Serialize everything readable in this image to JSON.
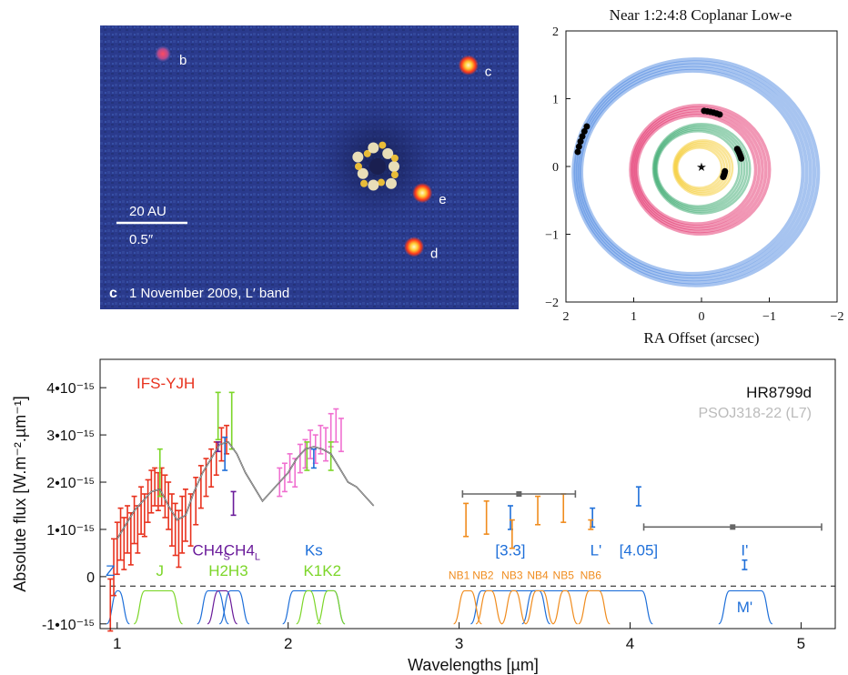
{
  "image_panel": {
    "background": "#2a3a8c",
    "panel_letter": "c",
    "caption": "1 November 2009, L′ band",
    "scale_top": "20 AU",
    "scale_bottom": "0.5″",
    "planets": [
      {
        "label": "b",
        "fx": 0.15,
        "fy": 0.1,
        "bright": false
      },
      {
        "label": "c",
        "fx": 0.88,
        "fy": 0.14,
        "bright": true
      },
      {
        "label": "e",
        "fx": 0.77,
        "fy": 0.59,
        "bright": true
      },
      {
        "label": "d",
        "fx": 0.75,
        "fy": 0.78,
        "bright": true
      }
    ]
  },
  "orbit_chart": {
    "title": "Near 1:2:4:8 Coplanar Low-e",
    "xlabel": "RA Offset (arcsec)",
    "ylabel": "",
    "xlim": [
      2,
      -2
    ],
    "ylim": [
      -2,
      2
    ],
    "xticks": [
      2,
      1,
      0,
      -1,
      -2
    ],
    "yticks": [
      -2,
      -1,
      0,
      1,
      2
    ],
    "tick_labels": [
      "2",
      "1",
      "0",
      "−1",
      "−2"
    ],
    "orbits": [
      {
        "name": "b",
        "a": 1.72,
        "color": "#3b7ddd"
      },
      {
        "name": "c",
        "a": 0.95,
        "color": "#e0195a"
      },
      {
        "name": "d",
        "a": 0.66,
        "color": "#1f9e5a"
      },
      {
        "name": "e",
        "a": 0.38,
        "color": "#f5c518"
      }
    ]
  },
  "chart_data": {
    "type": "scatter",
    "title": "",
    "xlabel": "Wavelengths [µm]",
    "ylabel": "Absolute flux [W.m⁻².µm⁻¹]",
    "xlim": [
      0.9,
      5.2
    ],
    "ylim": [
      -1.1,
      4.6
    ],
    "xticks": [
      1,
      2,
      3,
      4,
      5
    ],
    "xtick_labels": [
      "1",
      "2",
      "3",
      "4",
      "5"
    ],
    "yticks": [
      -1,
      0,
      1,
      2,
      3,
      4
    ],
    "ytick_labels": [
      "-1•10⁻¹⁵",
      "0",
      "1•10⁻¹⁵",
      "2•10⁻¹⁵",
      "3•10⁻¹⁵",
      "4•10⁻¹⁵"
    ],
    "legend": [
      {
        "text": "IFS-YJH",
        "color": "#e8321e",
        "position": "top-left"
      },
      {
        "text": "HR8799d",
        "color": "#111111",
        "position": "top-right"
      },
      {
        "text": "PSOJ318-22 (L7)",
        "color": "#bbbbbb",
        "position": "top-right"
      }
    ],
    "band_labels": [
      {
        "text": "Z",
        "x": 0.96,
        "y": 0.02,
        "color": "#1e6fd9"
      },
      {
        "text": "J",
        "x": 1.25,
        "y": 0.02,
        "color": "#7cd629"
      },
      {
        "text": "H2H3",
        "x": 1.65,
        "y": 0.02,
        "color": "#7cd629"
      },
      {
        "text": "CH4",
        "sub": "S",
        "x": 1.55,
        "y": 0.45,
        "color": "#6a1b9a"
      },
      {
        "text": "CH4",
        "sub": "L",
        "x": 1.73,
        "y": 0.45,
        "color": "#6a1b9a"
      },
      {
        "text": "Ks",
        "x": 2.15,
        "y": 0.45,
        "color": "#1e6fd9"
      },
      {
        "text": "K1K2",
        "x": 2.2,
        "y": 0.02,
        "color": "#7cd629"
      },
      {
        "text": "[3.3]",
        "x": 3.3,
        "y": 0.45,
        "color": "#1e6fd9"
      },
      {
        "text": "L'",
        "x": 3.8,
        "y": 0.45,
        "color": "#1e6fd9"
      },
      {
        "text": "[4.05]",
        "x": 4.05,
        "y": 0.45,
        "color": "#1e6fd9"
      },
      {
        "text": "I'",
        "x": 4.67,
        "y": 0.45,
        "color": "#1e6fd9"
      },
      {
        "text": "M'",
        "x": 4.67,
        "y": -0.75,
        "color": "#1e6fd9"
      },
      {
        "text": "NB1",
        "x": 3.0,
        "y": -0.05,
        "color": "#f08c1e"
      },
      {
        "text": "NB2",
        "x": 3.14,
        "y": -0.05,
        "color": "#f08c1e"
      },
      {
        "text": "NB3",
        "x": 3.31,
        "y": -0.05,
        "color": "#f08c1e"
      },
      {
        "text": "NB4",
        "x": 3.46,
        "y": -0.05,
        "color": "#f08c1e"
      },
      {
        "text": "NB5",
        "x": 3.61,
        "y": -0.05,
        "color": "#f08c1e"
      },
      {
        "text": "NB6",
        "x": 3.77,
        "y": -0.05,
        "color": "#f08c1e"
      }
    ],
    "series": [
      {
        "name": "IFS-YJH",
        "color": "#e8321e",
        "kind": "errorbar",
        "points": [
          [
            0.96,
            -0.6,
            0.55
          ],
          [
            0.98,
            0.2,
            0.6
          ],
          [
            1.0,
            0.6,
            0.55
          ],
          [
            1.02,
            0.9,
            0.55
          ],
          [
            1.04,
            0.7,
            0.55
          ],
          [
            1.06,
            1.0,
            0.5
          ],
          [
            1.08,
            0.8,
            0.55
          ],
          [
            1.1,
            1.2,
            0.5
          ],
          [
            1.12,
            1.0,
            0.5
          ],
          [
            1.14,
            1.4,
            0.5
          ],
          [
            1.16,
            1.3,
            0.45
          ],
          [
            1.18,
            1.6,
            0.45
          ],
          [
            1.2,
            1.8,
            0.45
          ],
          [
            1.22,
            1.9,
            0.4
          ],
          [
            1.24,
            1.8,
            0.4
          ],
          [
            1.26,
            1.9,
            0.4
          ],
          [
            1.28,
            1.7,
            0.45
          ],
          [
            1.3,
            1.5,
            0.5
          ],
          [
            1.32,
            1.2,
            0.55
          ],
          [
            1.34,
            1.0,
            0.55
          ],
          [
            1.36,
            0.8,
            0.6
          ],
          [
            1.38,
            1.1,
            0.6
          ],
          [
            1.4,
            1.3,
            0.55
          ],
          [
            1.43,
            1.2,
            0.55
          ],
          [
            1.46,
            1.6,
            0.5
          ],
          [
            1.49,
            1.9,
            0.45
          ],
          [
            1.52,
            2.1,
            0.4
          ],
          [
            1.55,
            2.3,
            0.4
          ],
          [
            1.58,
            2.5,
            0.35
          ],
          [
            1.61,
            2.8,
            0.35
          ],
          [
            1.64,
            2.9,
            0.3
          ]
        ]
      },
      {
        "name": "IFS-H/K",
        "color": "#f06fd0",
        "kind": "errorbar",
        "points": [
          [
            1.95,
            2.0,
            0.3
          ],
          [
            1.98,
            2.1,
            0.3
          ],
          [
            2.01,
            2.3,
            0.3
          ],
          [
            2.04,
            2.2,
            0.3
          ],
          [
            2.07,
            2.5,
            0.3
          ],
          [
            2.1,
            2.6,
            0.3
          ],
          [
            2.13,
            2.8,
            0.3
          ],
          [
            2.16,
            2.7,
            0.3
          ],
          [
            2.19,
            2.9,
            0.3
          ],
          [
            2.22,
            2.8,
            0.35
          ],
          [
            2.25,
            3.1,
            0.35
          ],
          [
            2.28,
            3.2,
            0.35
          ],
          [
            2.31,
            3.0,
            0.35
          ]
        ]
      },
      {
        "name": "photometry-green",
        "color": "#7cd629",
        "kind": "errorbar",
        "points": [
          [
            1.25,
            2.2,
            0.5
          ],
          [
            1.59,
            3.4,
            0.5
          ],
          [
            1.67,
            3.3,
            0.6
          ],
          [
            2.11,
            2.55,
            0.3
          ],
          [
            2.25,
            2.55,
            0.3
          ]
        ]
      },
      {
        "name": "photometry-purple",
        "color": "#6a1b9a",
        "kind": "errorbar",
        "points": [
          [
            1.59,
            2.75,
            0.1
          ],
          [
            1.68,
            1.55,
            0.25
          ]
        ]
      },
      {
        "name": "photometry-blue",
        "color": "#1e6fd9",
        "kind": "errorbar",
        "points": [
          [
            1.63,
            2.6,
            0.35
          ],
          [
            2.15,
            2.5,
            0.2
          ],
          [
            3.3,
            1.25,
            0.25
          ],
          [
            3.78,
            1.25,
            0.2
          ],
          [
            4.05,
            1.7,
            0.2
          ],
          [
            4.67,
            0.25,
            0.1
          ]
        ]
      },
      {
        "name": "photometry-orange",
        "color": "#f08c1e",
        "kind": "errorbar",
        "points": [
          [
            3.04,
            1.2,
            0.35
          ],
          [
            3.16,
            1.25,
            0.35
          ],
          [
            3.31,
            0.9,
            0.3
          ],
          [
            3.46,
            1.4,
            0.3
          ],
          [
            3.61,
            1.45,
            0.3
          ],
          [
            3.77,
            1.1,
            0.1
          ]
        ]
      },
      {
        "name": "photometry-gray",
        "color": "#666666",
        "kind": "xerror",
        "points": [
          [
            3.35,
            1.75,
            0.33
          ],
          [
            4.6,
            1.05,
            0.52
          ]
        ]
      },
      {
        "name": "PSOJ318-22 (L7)",
        "color": "#333333",
        "kind": "line",
        "x": [
          1.0,
          1.05,
          1.1,
          1.15,
          1.2,
          1.25,
          1.3,
          1.35,
          1.4,
          1.45,
          1.5,
          1.55,
          1.6,
          1.65,
          1.7,
          1.75,
          1.8,
          1.85,
          1.9,
          1.95,
          2.0,
          2.05,
          2.1,
          2.15,
          2.2,
          2.25,
          2.3,
          2.35,
          2.4,
          2.45,
          2.5
        ],
        "y": [
          0.8,
          1.1,
          1.4,
          1.6,
          1.8,
          1.85,
          1.5,
          1.2,
          1.3,
          1.8,
          2.2,
          2.5,
          2.8,
          2.85,
          2.6,
          2.2,
          1.9,
          1.6,
          1.8,
          2.0,
          2.2,
          2.5,
          2.7,
          2.75,
          2.7,
          2.6,
          2.3,
          2.0,
          1.9,
          1.7,
          1.5
        ]
      }
    ]
  }
}
